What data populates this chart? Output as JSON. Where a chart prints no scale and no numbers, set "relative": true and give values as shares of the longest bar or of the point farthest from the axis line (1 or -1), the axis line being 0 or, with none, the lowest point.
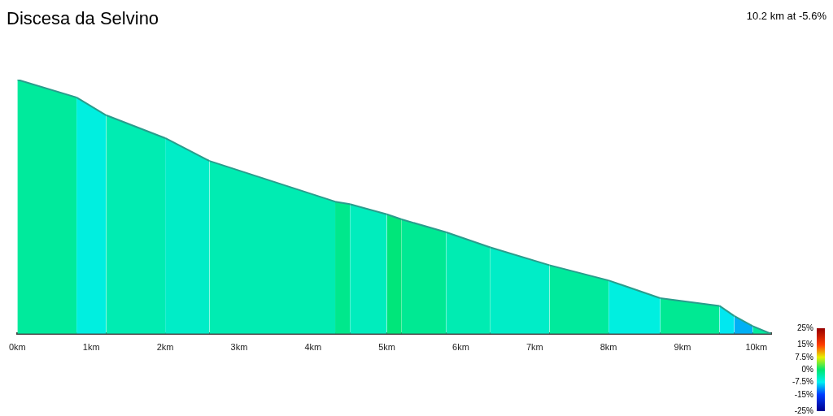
{
  "chart_data": {
    "type": "area",
    "title": "Discesa da Selvino",
    "subtitle": "10.2 km at -5.6%",
    "relative": true,
    "series": [
      {
        "color": "#00ea9c",
        "x": [
          0,
          0.8
        ],
        "values": [
          1,
          0.93
        ]
      },
      {
        "color": "#00efe0",
        "x": [
          0.8,
          1.2
        ],
        "values": [
          0.93,
          0.86
        ]
      },
      {
        "color": "#00ecb2",
        "x": [
          1.2,
          2.0
        ],
        "values": [
          0.86,
          0.77
        ]
      },
      {
        "color": "#00edc7",
        "x": [
          2.0,
          2.6
        ],
        "values": [
          0.77,
          0.68
        ]
      },
      {
        "color": "#00ecb2",
        "x": [
          2.6,
          4.3
        ],
        "values": [
          0.68,
          0.52
        ]
      },
      {
        "color": "#00e88c",
        "x": [
          4.3,
          4.5
        ],
        "values": [
          0.52,
          0.51
        ]
      },
      {
        "color": "#00edbd",
        "x": [
          4.5,
          5.0
        ],
        "values": [
          0.51,
          0.47
        ]
      },
      {
        "color": "#00e67a",
        "x": [
          5.0,
          5.2
        ],
        "values": [
          0.47,
          0.45
        ]
      },
      {
        "color": "#00e993",
        "x": [
          5.2,
          5.8
        ],
        "values": [
          0.45,
          0.4
        ]
      },
      {
        "color": "#00ecb2",
        "x": [
          5.8,
          6.4
        ],
        "values": [
          0.4,
          0.34
        ]
      },
      {
        "color": "#00edc7",
        "x": [
          6.4,
          7.2
        ],
        "values": [
          0.34,
          0.27
        ]
      },
      {
        "color": "#00ea9c",
        "x": [
          7.2,
          8.0
        ],
        "values": [
          0.27,
          0.21
        ]
      },
      {
        "color": "#00efe0",
        "x": [
          8.0,
          8.7
        ],
        "values": [
          0.21,
          0.14
        ]
      },
      {
        "color": "#00e993",
        "x": [
          8.7,
          9.5
        ],
        "values": [
          0.14,
          0.11
        ]
      },
      {
        "color": "#00e8f0",
        "x": [
          9.5,
          9.7
        ],
        "values": [
          0.11,
          0.07
        ]
      },
      {
        "color": "#00b0f5",
        "x": [
          9.7,
          9.95
        ],
        "values": [
          0.07,
          0.03
        ]
      },
      {
        "color": "#00ea9c",
        "x": [
          9.95,
          10.2
        ],
        "values": [
          0.03,
          0
        ]
      }
    ],
    "xlim": [
      0,
      10.2
    ],
    "xticks": [
      {
        "value": 0,
        "label": "0km"
      },
      {
        "value": 1,
        "label": "1km"
      },
      {
        "value": 2,
        "label": "2km"
      },
      {
        "value": 3,
        "label": "3km"
      },
      {
        "value": 4,
        "label": "4km"
      },
      {
        "value": 5,
        "label": "5km"
      },
      {
        "value": 6,
        "label": "6km"
      },
      {
        "value": 7,
        "label": "7km"
      },
      {
        "value": 8,
        "label": "8km"
      },
      {
        "value": 9,
        "label": "9km"
      },
      {
        "value": 10,
        "label": "10km"
      }
    ],
    "clim": [
      -25,
      25
    ],
    "cticks": [
      {
        "value": 25,
        "label": "25%"
      },
      {
        "value": 15,
        "label": "15%"
      },
      {
        "value": 7.5,
        "label": "7.5%"
      },
      {
        "value": 0,
        "label": "0%"
      },
      {
        "value": -7.5,
        "label": "-7.5%"
      },
      {
        "value": -15,
        "label": "-15%"
      },
      {
        "value": -25,
        "label": "-25%"
      }
    ],
    "grid": false,
    "legend": false
  }
}
